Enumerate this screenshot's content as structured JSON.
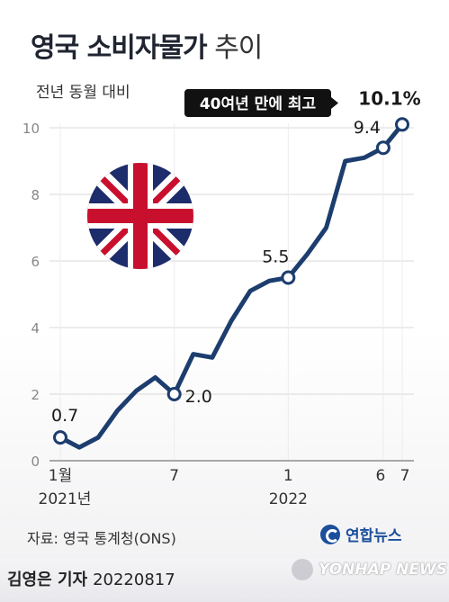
{
  "title": {
    "bold": "영국 소비자물가",
    "normal": "추이"
  },
  "subtitle": "전년 동월 대비",
  "source": "자료: 영국 통계청(ONS)",
  "byline": {
    "reporter": "김영은 기자",
    "date": "20220817"
  },
  "logo": "연합뉴스",
  "watermark": "YONHAP NEWS",
  "callout": {
    "text": "40여년 만에 최고",
    "value": "10.1%"
  },
  "colors": {
    "line": "#1c3d6e",
    "marker_fill": "#ffffff",
    "axis": "#888888",
    "callout_bg": "#111111"
  },
  "flag_icon": "union-jack-icon",
  "chart_data": {
    "type": "line",
    "title": "영국 소비자물가 추이",
    "ylabel": "전년 동월 대비",
    "ylim": [
      0,
      10.5
    ],
    "grid": true,
    "y_ticks": [
      0,
      2,
      4,
      6,
      8,
      10
    ],
    "x": [
      "2021-01",
      "2021-02",
      "2021-03",
      "2021-04",
      "2021-05",
      "2021-06",
      "2021-07",
      "2021-08",
      "2021-09",
      "2021-10",
      "2021-11",
      "2021-12",
      "2022-01",
      "2022-02",
      "2022-03",
      "2022-04",
      "2022-05",
      "2022-06",
      "2022-07"
    ],
    "series": [
      {
        "values": [
          0.7,
          0.4,
          0.7,
          1.5,
          2.1,
          2.5,
          2.0,
          3.2,
          3.1,
          4.2,
          5.1,
          5.4,
          5.5,
          6.2,
          7.0,
          9.0,
          9.1,
          9.4,
          10.1
        ]
      }
    ],
    "x_tick_labels": [
      {
        "index": 0,
        "line1": "1월",
        "line2": "2021년"
      },
      {
        "index": 6,
        "line1": "7",
        "line2": ""
      },
      {
        "index": 12,
        "line1": "1",
        "line2": "2022"
      },
      {
        "index": 17,
        "line1": "6",
        "line2": ""
      },
      {
        "index": 18,
        "line1": "7",
        "line2": ""
      }
    ],
    "annotations": [
      {
        "index": 0,
        "label": "0.7"
      },
      {
        "index": 6,
        "label": "2.0"
      },
      {
        "index": 12,
        "label": "5.5"
      },
      {
        "index": 17,
        "label": "9.4"
      },
      {
        "index": 18,
        "label": "10.1%"
      }
    ],
    "marked_points": [
      0,
      6,
      12,
      17,
      18
    ]
  }
}
